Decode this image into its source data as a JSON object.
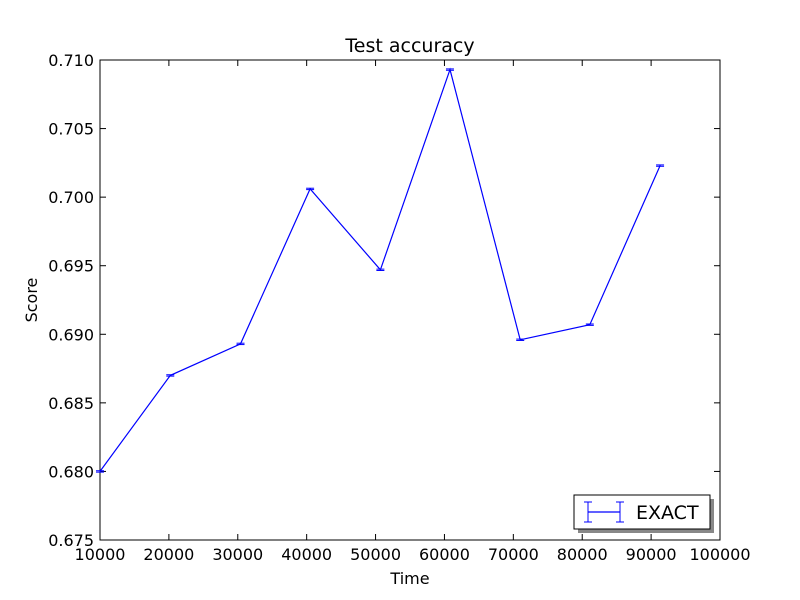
{
  "chart_data": {
    "type": "line",
    "title": "Test accuracy",
    "xlabel": "Time",
    "ylabel": "Score",
    "xlim": [
      10000,
      100000
    ],
    "ylim": [
      0.675,
      0.71
    ],
    "x_ticks": [
      10000,
      20000,
      30000,
      40000,
      50000,
      60000,
      70000,
      80000,
      90000,
      100000
    ],
    "x_tick_labels": [
      "10000",
      "20000",
      "30000",
      "40000",
      "50000",
      "60000",
      "70000",
      "80000",
      "90000",
      "100000"
    ],
    "y_ticks": [
      0.675,
      0.68,
      0.685,
      0.69,
      0.695,
      0.7,
      0.705,
      0.71
    ],
    "y_tick_labels": [
      "0.675",
      "0.680",
      "0.685",
      "0.690",
      "0.695",
      "0.700",
      "0.705",
      "0.710"
    ],
    "grid": false,
    "legend_position": "bottom-right",
    "series": [
      {
        "name": "EXACT",
        "color": "#0000ff",
        "error_bars": true,
        "x": [
          10000,
          20200,
          30400,
          40500,
          50700,
          60800,
          71000,
          81100,
          91300
        ],
        "y": [
          0.68,
          0.687,
          0.6893,
          0.7006,
          0.6947,
          0.7093,
          0.6896,
          0.6907,
          0.7023
        ],
        "yerr": [
          5e-05,
          5e-05,
          5e-05,
          5e-05,
          5e-05,
          5e-05,
          5e-05,
          5e-05,
          5e-05
        ]
      }
    ]
  }
}
